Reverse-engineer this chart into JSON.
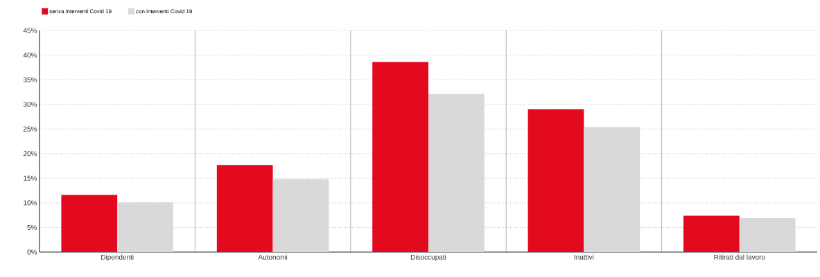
{
  "chart_data": {
    "type": "bar",
    "categories": [
      "Dipendenti",
      "Autonomi",
      "Disoccupati",
      "Inattivi",
      "Ritirati dal lavoro"
    ],
    "series": [
      {
        "name": "senza interventi Covid 19",
        "color": "#e30a1f",
        "values": [
          11.6,
          17.7,
          38.6,
          29.0,
          7.4
        ]
      },
      {
        "name": "con interventi Covid 19",
        "color": "#d9d9d9",
        "values": [
          10.1,
          14.8,
          32.1,
          25.4,
          6.9
        ]
      }
    ],
    "ylim": [
      0,
      45
    ],
    "yticks": [
      {
        "value": 0,
        "label": "0%"
      },
      {
        "value": 5,
        "label": "5%"
      },
      {
        "value": 10,
        "label": "10%"
      },
      {
        "value": 15,
        "label": "15%"
      },
      {
        "value": 20,
        "label": "20%"
      },
      {
        "value": 25,
        "label": "25%"
      },
      {
        "value": 30,
        "label": "30%"
      },
      {
        "value": 35,
        "label": "35%"
      },
      {
        "value": 40,
        "label": "40%"
      },
      {
        "value": 45,
        "label": "45%"
      }
    ],
    "grid": "y",
    "legend": "top left"
  }
}
